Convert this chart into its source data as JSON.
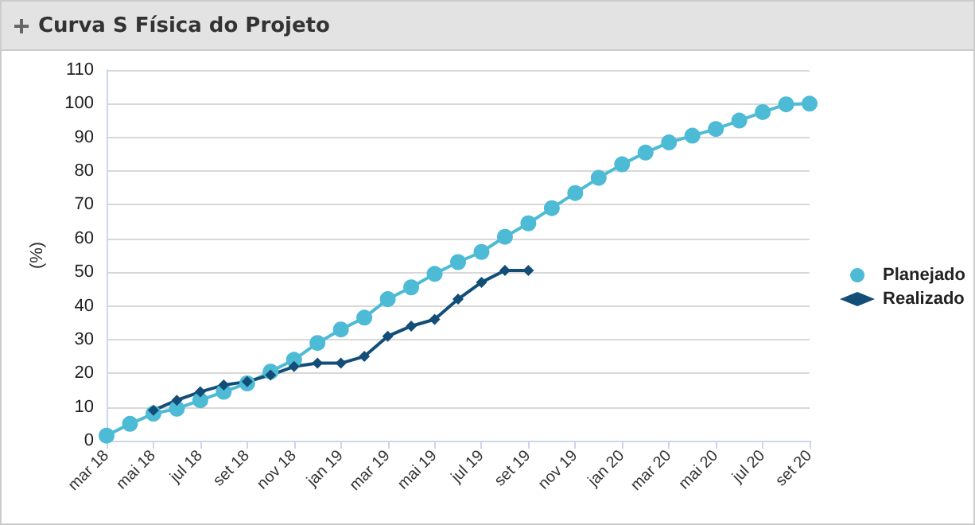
{
  "chart_data": {
    "type": "line",
    "title": "Curva S Física do Projeto",
    "ylabel": "(%)",
    "categories": [
      "mar 18",
      null,
      "mai 18",
      null,
      "jul 18",
      null,
      "set 18",
      null,
      "nov 18",
      null,
      "jan 19",
      null,
      "mar 19",
      null,
      "mai 19",
      null,
      "jul 19",
      null,
      "set 19",
      null,
      "nov 19",
      null,
      "jan 20",
      null,
      "mar 20",
      null,
      "mai 20",
      null,
      "jul 20",
      null,
      "set 20"
    ],
    "series": [
      {
        "name": "Planejado",
        "color": "#4dbbd5",
        "marker": "circle",
        "values": [
          1.5,
          5,
          8,
          9.5,
          12,
          14.5,
          17,
          20.5,
          24,
          29,
          33,
          36.5,
          42,
          45.5,
          49.5,
          53,
          56,
          60.5,
          64.5,
          69,
          73.5,
          78,
          82,
          85.5,
          88.5,
          90.5,
          92.5,
          95,
          97.5,
          99.8,
          100
        ]
      },
      {
        "name": "Realizado",
        "color": "#124e78",
        "marker": "diamond",
        "values": [
          null,
          null,
          9,
          12,
          14.5,
          16.5,
          17.5,
          19.5,
          22,
          23,
          23,
          25,
          31,
          34,
          36,
          42,
          47,
          50.5,
          50.5,
          null,
          null,
          null,
          null,
          null,
          null,
          null,
          null,
          null,
          null,
          null,
          null
        ]
      }
    ],
    "ylim": [
      0,
      110
    ],
    "yticks": [
      0,
      10,
      20,
      30,
      40,
      50,
      60,
      70,
      80,
      90,
      100,
      110
    ],
    "grid": "y",
    "legend": "right"
  }
}
